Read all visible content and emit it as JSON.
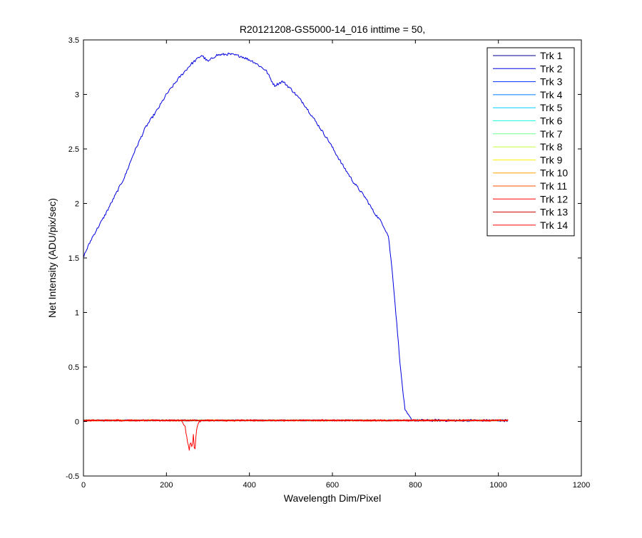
{
  "chart_data": {
    "type": "line",
    "title": "R20121208-GS5000-14_016 inttime = 50,",
    "xlabel": "Wavelength Dim/Pixel",
    "ylabel": "Net Intensity (ADU/pix/sec)",
    "xlim": [
      0,
      1200
    ],
    "ylim": [
      -0.5,
      3.5
    ],
    "xticks": [
      0,
      200,
      400,
      600,
      800,
      1000,
      1200
    ],
    "yticks": [
      -0.5,
      0,
      0.5,
      1,
      1.5,
      2,
      2.5,
      3,
      3.5
    ],
    "xtick_labels": [
      "0",
      "200",
      "400",
      "600",
      "800",
      "1000",
      "1200"
    ],
    "ytick_labels": [
      "-0.5",
      "0",
      "0.5",
      "1",
      "1.5",
      "2",
      "2.5",
      "3",
      "3.5"
    ],
    "grid": false,
    "legend_position": "top-right",
    "x_range": [
      1,
      1024
    ],
    "series": [
      {
        "name": "Trk 1",
        "color": "#00008F",
        "noise": 0.006,
        "points": [
          [
            1,
            0.01
          ],
          [
            1024,
            0.01
          ]
        ]
      },
      {
        "name": "Trk 2",
        "color": "#0000DF",
        "noise": 0.012,
        "points": [
          [
            1,
            1.52
          ],
          [
            20,
            1.68
          ],
          [
            50,
            1.88
          ],
          [
            80,
            2.1
          ],
          [
            100,
            2.25
          ],
          [
            120,
            2.45
          ],
          [
            150,
            2.7
          ],
          [
            180,
            2.87
          ],
          [
            200,
            3.0
          ],
          [
            230,
            3.15
          ],
          [
            260,
            3.28
          ],
          [
            285,
            3.36
          ],
          [
            300,
            3.3
          ],
          [
            320,
            3.36
          ],
          [
            350,
            3.37
          ],
          [
            380,
            3.35
          ],
          [
            410,
            3.3
          ],
          [
            440,
            3.22
          ],
          [
            460,
            3.08
          ],
          [
            480,
            3.12
          ],
          [
            500,
            3.05
          ],
          [
            530,
            2.92
          ],
          [
            560,
            2.75
          ],
          [
            590,
            2.58
          ],
          [
            620,
            2.38
          ],
          [
            650,
            2.2
          ],
          [
            680,
            2.05
          ],
          [
            700,
            1.92
          ],
          [
            720,
            1.82
          ],
          [
            735,
            1.7
          ],
          [
            745,
            1.35
          ],
          [
            755,
            0.9
          ],
          [
            765,
            0.45
          ],
          [
            775,
            0.1
          ],
          [
            790,
            0.02
          ],
          [
            800,
            0.01
          ],
          [
            1024,
            0.01
          ]
        ]
      },
      {
        "name": "Trk 3",
        "color": "#002FFF",
        "noise": 0.006,
        "points": [
          [
            1,
            0.01
          ],
          [
            1024,
            0.01
          ]
        ]
      },
      {
        "name": "Trk 4",
        "color": "#007FFF",
        "noise": 0.006,
        "points": [
          [
            1,
            0.01
          ],
          [
            1024,
            0.01
          ]
        ]
      },
      {
        "name": "Trk 5",
        "color": "#00CFFF",
        "noise": 0.006,
        "points": [
          [
            1,
            0.01
          ],
          [
            1024,
            0.01
          ]
        ]
      },
      {
        "name": "Trk 6",
        "color": "#1FFFDF",
        "noise": 0.006,
        "points": [
          [
            1,
            0.01
          ],
          [
            1024,
            0.01
          ]
        ]
      },
      {
        "name": "Trk 7",
        "color": "#6FFF8F",
        "noise": 0.006,
        "points": [
          [
            1,
            0.01
          ],
          [
            1024,
            0.01
          ]
        ]
      },
      {
        "name": "Trk 8",
        "color": "#BFFF3F",
        "noise": 0.006,
        "points": [
          [
            1,
            0.01
          ],
          [
            1024,
            0.01
          ]
        ]
      },
      {
        "name": "Trk 9",
        "color": "#FFEF00",
        "noise": 0.006,
        "points": [
          [
            1,
            0.01
          ],
          [
            1024,
            0.01
          ]
        ]
      },
      {
        "name": "Trk 10",
        "color": "#FF9F00",
        "noise": 0.006,
        "points": [
          [
            1,
            0.01
          ],
          [
            1024,
            0.01
          ]
        ]
      },
      {
        "name": "Trk 11",
        "color": "#FF5000",
        "noise": 0.006,
        "points": [
          [
            1,
            0.01
          ],
          [
            1024,
            0.01
          ]
        ]
      },
      {
        "name": "Trk 12",
        "color": "#FF0000",
        "noise": 0.006,
        "points": [
          [
            1,
            0.01
          ],
          [
            1024,
            0.01
          ]
        ]
      },
      {
        "name": "Trk 13",
        "color": "#CF0000",
        "noise": 0.006,
        "points": [
          [
            1,
            0.01
          ],
          [
            1024,
            0.01
          ]
        ]
      },
      {
        "name": "Trk 14",
        "color": "#FF0000",
        "noise": 0.008,
        "points": [
          [
            1,
            0.01
          ],
          [
            235,
            0.01
          ],
          [
            240,
            -0.02
          ],
          [
            245,
            -0.05
          ],
          [
            250,
            -0.17
          ],
          [
            255,
            -0.26
          ],
          [
            258,
            -0.18
          ],
          [
            262,
            -0.24
          ],
          [
            265,
            -0.12
          ],
          [
            268,
            -0.3
          ],
          [
            272,
            -0.08
          ],
          [
            276,
            -0.02
          ],
          [
            280,
            0.0
          ],
          [
            285,
            0.01
          ],
          [
            1024,
            0.01
          ]
        ]
      }
    ]
  }
}
